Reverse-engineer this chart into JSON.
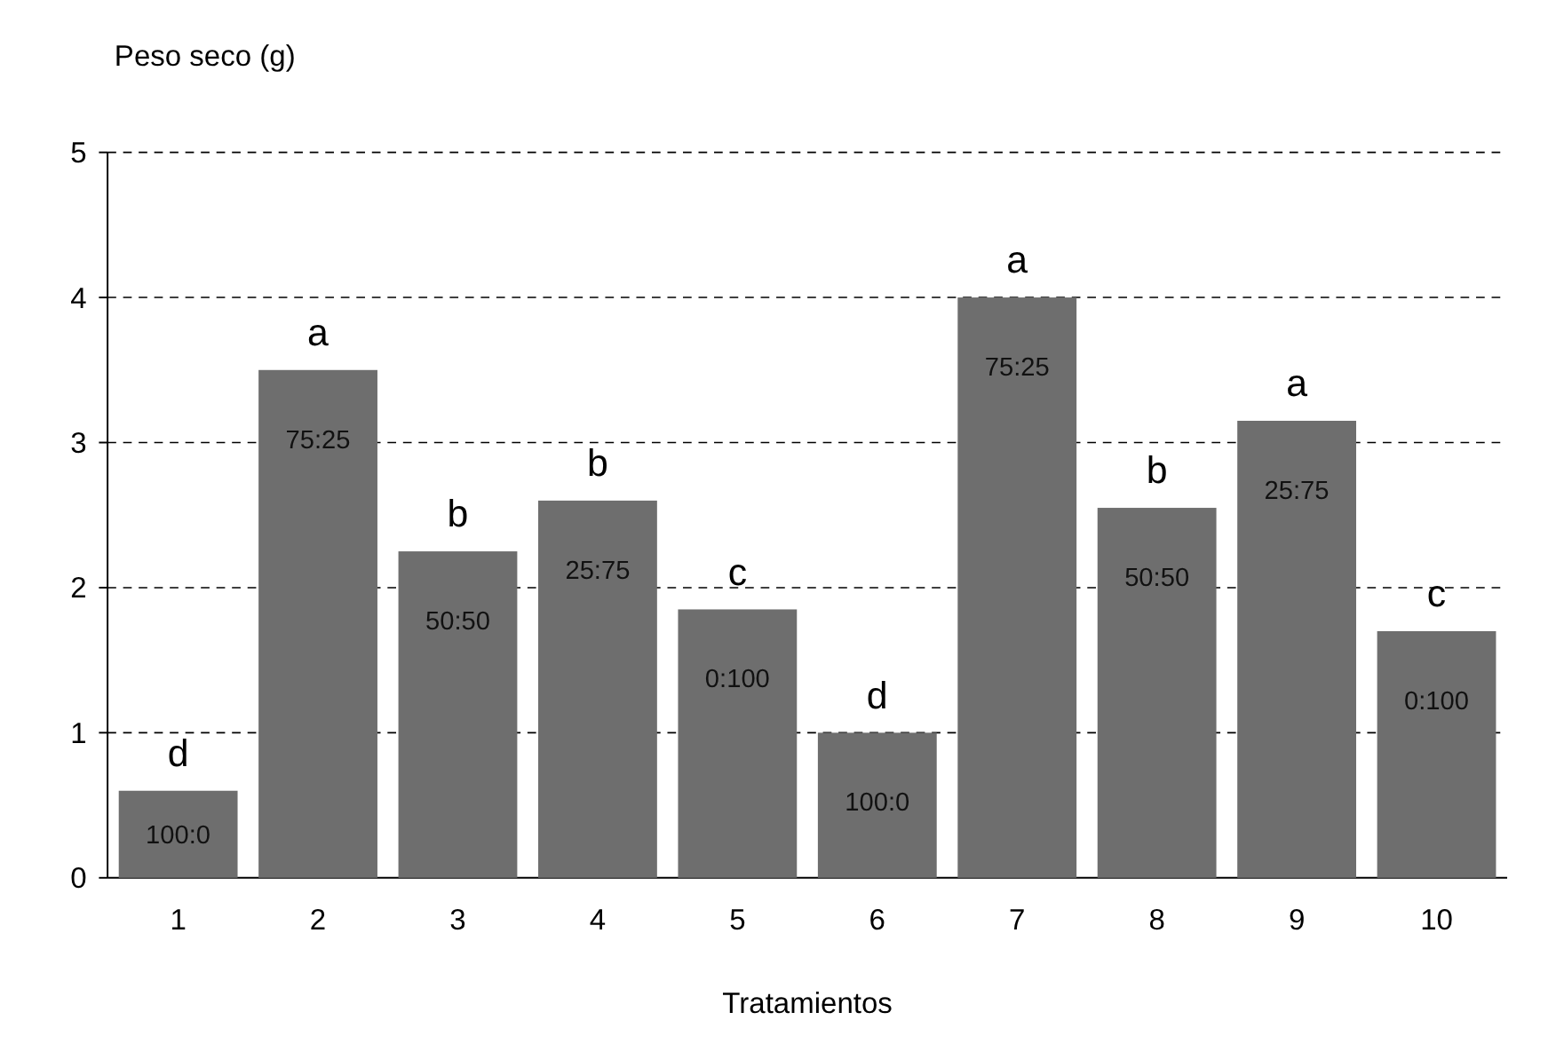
{
  "chart_data": {
    "type": "bar",
    "xlabel": "Tratamientos",
    "ylabel": "Peso seco (g)",
    "categories": [
      "1",
      "2",
      "3",
      "4",
      "5",
      "6",
      "7",
      "8",
      "9",
      "10"
    ],
    "values": [
      0.6,
      3.5,
      2.25,
      2.6,
      1.85,
      1.0,
      4.0,
      2.55,
      3.15,
      1.7
    ],
    "color": "#6e6e6e",
    "ylim": [
      0,
      5
    ],
    "yticks": [
      0,
      1,
      2,
      3,
      4,
      5
    ],
    "grid": "y",
    "line_style": "dashed",
    "annotations": [
      "d",
      "a",
      "b",
      "b",
      "c",
      "d",
      "a",
      "b",
      "a",
      "c",
      "100:0",
      "75:25",
      "50:50",
      "25:75",
      "0:100",
      "100:0",
      "75:25",
      "50:50",
      "25:75",
      "0:100"
    ]
  }
}
